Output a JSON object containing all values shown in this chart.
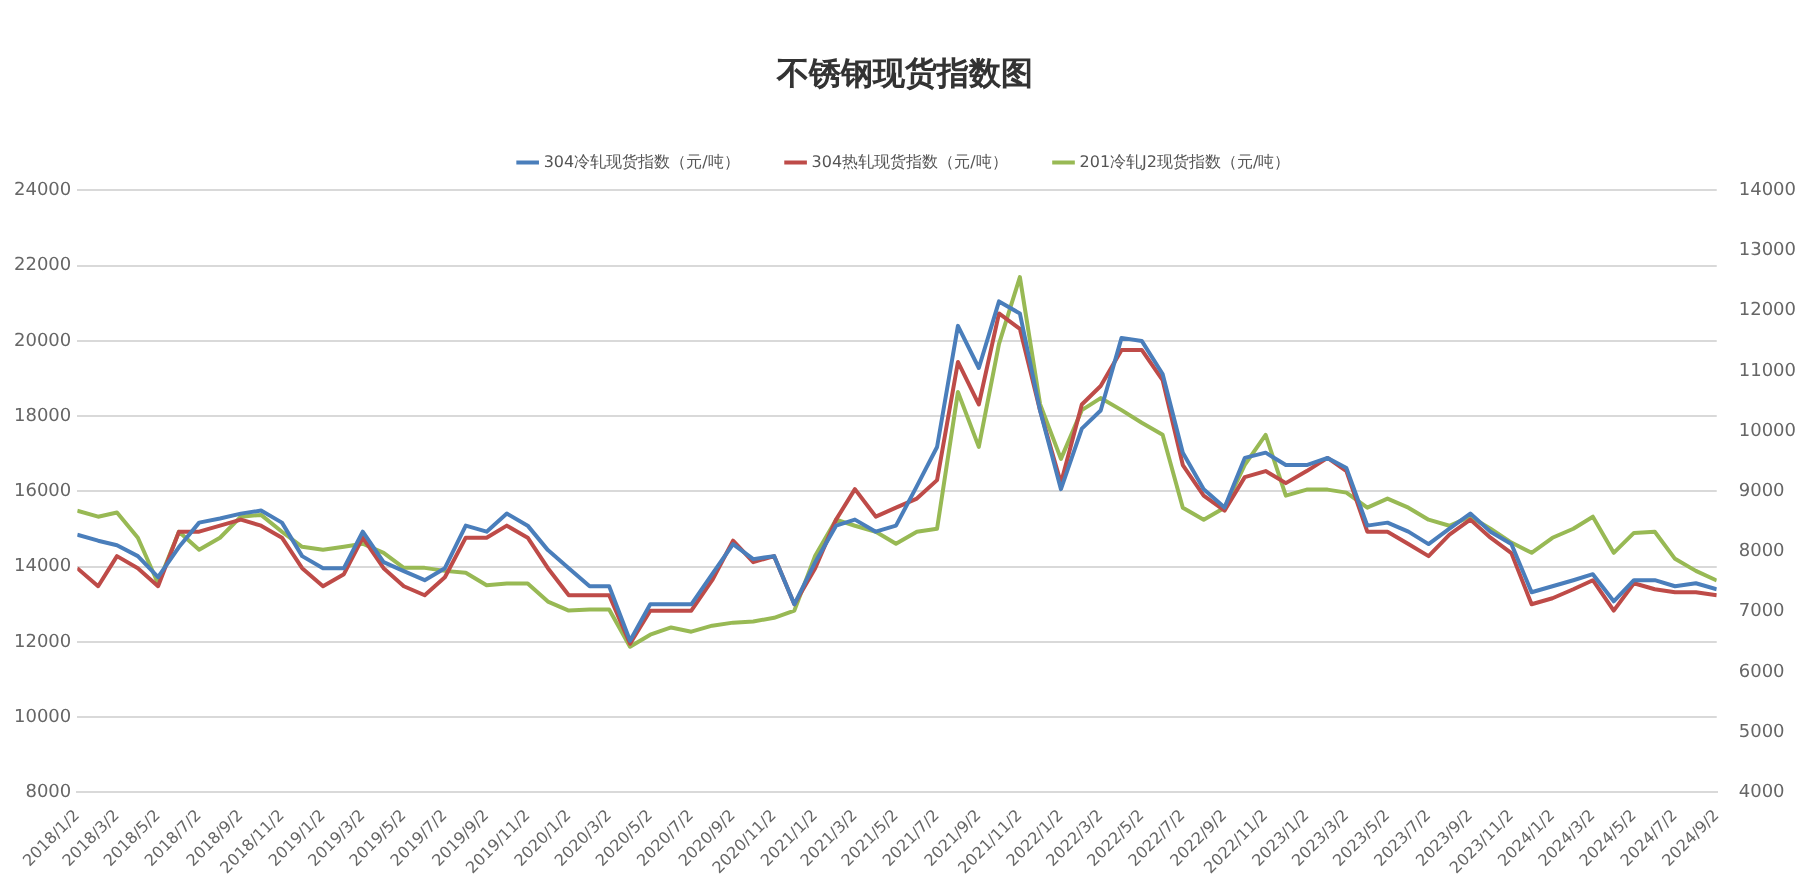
{
  "chart_data": {
    "type": "line",
    "title": "不锈钢现货指数图",
    "x": [
      "2018-01-02",
      "2018-02-02",
      "2018-03-02",
      "2018-04-02",
      "2018-05-02",
      "2018-06-02",
      "2018-07-02",
      "2018-08-02",
      "2018-09-02",
      "2018-10-02",
      "2018-11-02",
      "2018-12-02",
      "2019-01-02",
      "2019-02-02",
      "2019-03-02",
      "2019-04-02",
      "2019-05-02",
      "2019-06-02",
      "2019-07-02",
      "2019-08-02",
      "2019-09-02",
      "2019-10-02",
      "2019-11-02",
      "2019-12-02",
      "2020-01-02",
      "2020-02-02",
      "2020-03-02",
      "2020-04-02",
      "2020-05-02",
      "2020-06-02",
      "2020-07-02",
      "2020-08-02",
      "2020-09-02",
      "2020-10-02",
      "2020-11-02",
      "2020-12-02",
      "2021-01-02",
      "2021-02-02",
      "2021-03-02",
      "2021-04-02",
      "2021-05-02",
      "2021-06-02",
      "2021-07-02",
      "2021-08-02",
      "2021-09-02",
      "2021-10-02",
      "2021-11-02",
      "2021-12-02",
      "2022-01-02",
      "2022-02-02",
      "2022-03-02",
      "2022-04-02",
      "2022-05-02",
      "2022-06-02",
      "2022-07-02",
      "2022-08-02",
      "2022-09-02",
      "2022-10-02",
      "2022-11-02",
      "2022-12-02",
      "2023-01-02",
      "2023-02-02",
      "2023-03-02",
      "2023-04-02",
      "2023-05-02",
      "2023-06-02",
      "2023-07-02",
      "2023-08-02",
      "2023-09-02",
      "2023-10-02",
      "2023-11-02",
      "2023-12-02",
      "2024-01-02",
      "2024-02-02",
      "2024-03-02",
      "2024-04-02",
      "2024-05-02",
      "2024-06-02",
      "2024-07-02",
      "2024-08-02",
      "2024-09-02"
    ],
    "series": [
      {
        "name": "304冷轧现货指数（元/吨）",
        "color": "#4a7ebb",
        "values": [
          14850,
          14690,
          14570,
          14280,
          13720,
          14520,
          15170,
          15280,
          15410,
          15490,
          15170,
          14280,
          13960,
          13960,
          14930,
          14120,
          13880,
          13640,
          13960,
          15090,
          14930,
          15410,
          15090,
          14440,
          13960,
          13480,
          13480,
          12030,
          13000,
          13000,
          13000,
          13800,
          14600,
          14200,
          14280,
          13000,
          14120,
          15090,
          15250,
          14930,
          15090,
          16140,
          17180,
          20400,
          19280,
          21050,
          20730,
          18150,
          16060,
          17670,
          18150,
          20080,
          20000,
          19120,
          17030,
          16060,
          15570,
          16890,
          17030,
          16700,
          16700,
          16890,
          16620,
          15090,
          15170,
          14930,
          14600,
          15010,
          15410,
          14930,
          14600,
          13320,
          13480,
          13640,
          13800,
          13080,
          13640,
          13640,
          13480,
          13560,
          13400
        ]
      },
      {
        "name": "304热轧现货指数（元/吨）",
        "color": "#be4b48",
        "values": [
          13960,
          13480,
          14280,
          13960,
          13480,
          14930,
          14930,
          15090,
          15250,
          15090,
          14770,
          13960,
          13480,
          13800,
          14770,
          13960,
          13480,
          13240,
          13720,
          14770,
          14770,
          15090,
          14770,
          13960,
          13240,
          13240,
          13240,
          11950,
          12830,
          12830,
          12830,
          13640,
          14690,
          14120,
          14280,
          13000,
          13960,
          15250,
          16060,
          15330,
          15570,
          15810,
          16300,
          19440,
          18310,
          20730,
          20320,
          18150,
          16220,
          18310,
          18800,
          19760,
          19760,
          18960,
          16700,
          15890,
          15490,
          16380,
          16540,
          16220,
          16540,
          16890,
          16540,
          14930,
          14930,
          14600,
          14280,
          14850,
          15250,
          14770,
          14360,
          13000,
          13160,
          13400,
          13640,
          12830,
          13560,
          13400,
          13320,
          13320,
          13240
        ]
      },
      {
        "name": "201冷轧J2现货指数（元/吨）",
        "color": "#98b954",
        "axis": "y2",
        "values": [
          8680,
          8580,
          8650,
          8230,
          7470,
          8330,
          8030,
          8230,
          8580,
          8610,
          8330,
          8080,
          8030,
          8080,
          8130,
          7980,
          7730,
          7730,
          7680,
          7650,
          7440,
          7470,
          7470,
          7170,
          7020,
          7040,
          7040,
          6420,
          6620,
          6740,
          6670,
          6770,
          6820,
          6840,
          6900,
          7020,
          7930,
          8530,
          8430,
          8330,
          8130,
          8330,
          8380,
          10650,
          9740,
          11450,
          12560,
          10450,
          9540,
          10350,
          10550,
          10350,
          10140,
          9940,
          8730,
          8530,
          8730,
          9440,
          9940,
          8930,
          9030,
          9030,
          8980,
          8730,
          8880,
          8730,
          8530,
          8430,
          8580,
          8380,
          8150,
          7980,
          8230,
          8380,
          8580,
          7980,
          8310,
          8330,
          7880,
          7680,
          7520
        ]
      }
    ],
    "xlim": [
      "2018-01-02",
      "2024-09-02"
    ],
    "xticks": [
      {
        "value": "2018-01-02",
        "label": "2018/1/2"
      },
      {
        "value": "2018-03-02",
        "label": "2018/3/2"
      },
      {
        "value": "2018-05-02",
        "label": "2018/5/2"
      },
      {
        "value": "2018-07-02",
        "label": "2018/7/2"
      },
      {
        "value": "2018-09-02",
        "label": "2018/9/2"
      },
      {
        "value": "2018-11-02",
        "label": "2018/11/2"
      },
      {
        "value": "2019-01-02",
        "label": "2019/1/2"
      },
      {
        "value": "2019-03-02",
        "label": "2019/3/2"
      },
      {
        "value": "2019-05-02",
        "label": "2019/5/2"
      },
      {
        "value": "2019-07-02",
        "label": "2019/7/2"
      },
      {
        "value": "2019-09-02",
        "label": "2019/9/2"
      },
      {
        "value": "2019-11-02",
        "label": "2019/11/2"
      },
      {
        "value": "2020-01-02",
        "label": "2020/1/2"
      },
      {
        "value": "2020-03-02",
        "label": "2020/3/2"
      },
      {
        "value": "2020-05-02",
        "label": "2020/5/2"
      },
      {
        "value": "2020-07-02",
        "label": "2020/7/2"
      },
      {
        "value": "2020-09-02",
        "label": "2020/9/2"
      },
      {
        "value": "2020-11-02",
        "label": "2020/11/2"
      },
      {
        "value": "2021-01-02",
        "label": "2021/1/2"
      },
      {
        "value": "2021-03-02",
        "label": "2021/3/2"
      },
      {
        "value": "2021-05-02",
        "label": "2021/5/2"
      },
      {
        "value": "2021-07-02",
        "label": "2021/7/2"
      },
      {
        "value": "2021-09-02",
        "label": "2021/9/2"
      },
      {
        "value": "2021-11-02",
        "label": "2021/11/2"
      },
      {
        "value": "2022-01-02",
        "label": "2022/1/2"
      },
      {
        "value": "2022-03-02",
        "label": "2022/3/2"
      },
      {
        "value": "2022-05-02",
        "label": "2022/5/2"
      },
      {
        "value": "2022-07-02",
        "label": "2022/7/2"
      },
      {
        "value": "2022-09-02",
        "label": "2022/9/2"
      },
      {
        "value": "2022-11-02",
        "label": "2022/11/2"
      },
      {
        "value": "2023-01-02",
        "label": "2023/1/2"
      },
      {
        "value": "2023-03-02",
        "label": "2023/3/2"
      },
      {
        "value": "2023-05-02",
        "label": "2023/5/2"
      },
      {
        "value": "2023-07-02",
        "label": "2023/7/2"
      },
      {
        "value": "2023-09-02",
        "label": "2023/9/2"
      },
      {
        "value": "2023-11-02",
        "label": "2023/11/2"
      },
      {
        "value": "2024-01-02",
        "label": "2024/1/2"
      },
      {
        "value": "2024-03-02",
        "label": "2024/3/2"
      },
      {
        "value": "2024-05-02",
        "label": "2024/5/2"
      },
      {
        "value": "2024-07-02",
        "label": "2024/7/2"
      },
      {
        "value": "2024-09-02",
        "label": "2024/9/2"
      }
    ],
    "ylim": [
      8000,
      24000
    ],
    "yticks": [
      8000,
      10000,
      12000,
      14000,
      16000,
      18000,
      20000,
      22000,
      24000
    ],
    "y2lim": [
      4000,
      14000
    ],
    "y2ticks": [
      4000,
      5000,
      6000,
      7000,
      8000,
      9000,
      10000,
      11000,
      12000,
      13000,
      14000
    ],
    "grid": "y",
    "legend": "top",
    "marker": "none",
    "line_style": "solid"
  }
}
